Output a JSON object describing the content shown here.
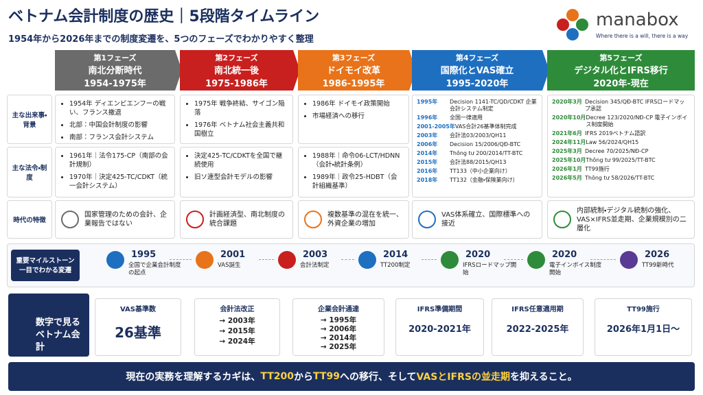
{
  "header": {
    "title": "ベトナム会計制度の歴史｜5段階タイムライン",
    "subtitle": "1954年から2026年までの制度変遷を、5つのフェーズでわかりやすく整理",
    "brand": "manabox",
    "tagline": "Where there is a will, there is a way"
  },
  "row_labels": [
    "主な出来事・背景",
    "主な法令・制度",
    "時代の特徴"
  ],
  "phases": [
    {
      "label": "第1フェーズ",
      "name": "南北分断時代",
      "years": "1954-1975年",
      "color": "#6b6b6b",
      "events": [
        "1954年 ディエンビエンフーの戦い、フランス撤退",
        "北部：中国会計制度の影響",
        "南部：フランス会計システム"
      ],
      "laws": [
        "1961年｜法令175-CP（南部の会計規制）",
        "1970年｜決定425-TC/CDKT（統一会計システム）"
      ],
      "feature": "国家管理のための会計、企業報告ではない"
    },
    {
      "label": "第2フェーズ",
      "name": "南北統一後",
      "years": "1975-1986年",
      "color": "#c8201e",
      "events": [
        "1975年 戦争終結、サイゴン陥落",
        "1976年 ベトナム社会主義共和国樹立"
      ],
      "laws": [
        "決定425-TC/CDKTを全国で継続使用",
        "旧ソ連型会計モデルの影響"
      ],
      "feature": "計画経済型、南北制度の統合課題"
    },
    {
      "label": "第3フェーズ",
      "name": "ドイモイ改革",
      "years": "1986-1995年",
      "color": "#e8731a",
      "events": [
        "1986年 ドイモイ政策開始",
        "市場経済への移行"
      ],
      "laws": [
        "1988年｜命令06-LCT/HDNN（会計・統計条例）",
        "1989年｜政令25-HDBT（会計組織基準）"
      ],
      "feature": "複数基準の混在を統一、外資企業の増加"
    },
    {
      "label": "第4フェーズ",
      "name": "国際化とVAS確立",
      "years": "1995-2020年",
      "color": "#1f6fc0",
      "timeline": [
        [
          "1995年",
          "Decision 1141-TC/QD/CDKT 企業会計システム制定"
        ],
        [
          "1996年",
          "全国一律適用"
        ],
        [
          "2001-2005年",
          "VAS合計26基準体制完成"
        ],
        [
          "2003年",
          "会計法03/2003/QH11"
        ],
        [
          "2006年",
          "Decision 15/2006/QĐ-BTC"
        ],
        [
          "2014年",
          "Thông tư 200/2014/TT-BTC"
        ],
        [
          "2015年",
          "会計法88/2015/QH13"
        ],
        [
          "2016年",
          "TT133（中小企業向け）"
        ],
        [
          "2018年",
          "TT132（金融・保険業向け）"
        ]
      ],
      "feature": "VAS体系確立、国際標準への接近"
    },
    {
      "label": "第5フェーズ",
      "name": "デジタル化とIFRS移行",
      "years": "2020年-現在",
      "color": "#2e8b3a",
      "timeline": [
        [
          "2020年3月",
          "Decision 345/QĐ-BTC IFRSロードマップ承認"
        ],
        [
          "2020年10月",
          "Decree 123/2020/NĐ-CP 電子インボイス制度開始"
        ],
        [
          "2021年6月",
          "IFRS 2019ベトナム語訳"
        ],
        [
          "2024年11月",
          "Law 56/2024/QH15"
        ],
        [
          "2025年3月",
          "Decree 70/2025/NĐ-CP"
        ],
        [
          "2025年10月",
          "Thông tư 99/2025/TT-BTC"
        ],
        [
          "2026年1月",
          "TT99施行"
        ],
        [
          "2026年5月",
          "Thông tư 58/2026/TT-BTC"
        ]
      ],
      "feature": "内部統制・デジタル統制の強化、VAS×IFRS並走期、企業規模別の二層化"
    }
  ],
  "milestones": {
    "label": "重要マイルストーン一目でわかる変遷",
    "items": [
      {
        "year": "1995",
        "text": "全国で企業会計制度の起点",
        "color": "#1f6fc0"
      },
      {
        "year": "2001",
        "text": "VAS誕生",
        "color": "#e8731a"
      },
      {
        "year": "2003",
        "text": "会計法制定",
        "color": "#c8201e"
      },
      {
        "year": "2014",
        "text": "TT200制定",
        "color": "#1f6fc0"
      },
      {
        "year": "2020",
        "text": "IFRSロードマップ開始",
        "color": "#2e8b3a"
      },
      {
        "year": "2020",
        "text": "電子インボイス制度開始",
        "color": "#2e8b3a"
      },
      {
        "year": "2026",
        "text": "TT99新時代",
        "color": "#5b3a96"
      }
    ]
  },
  "numbers": {
    "label": "数字で見るベトナム会計",
    "cards": [
      {
        "title": "VAS基準数",
        "main": "26基準"
      },
      {
        "title": "会計法改正",
        "list": [
          "2003年",
          "2015年",
          "2024年"
        ]
      },
      {
        "title": "企業会計通達",
        "list": [
          "1995年",
          "2006年",
          "2014年",
          "2025年"
        ]
      },
      {
        "title": "IFRS準備期間",
        "main": "2020-2021年"
      },
      {
        "title": "IFRS任意適用期",
        "main": "2022-2025年"
      },
      {
        "title": "TT99施行",
        "main": "2026年1月1日〜"
      }
    ]
  },
  "footer": {
    "segments": [
      {
        "text": "現在の実務を理解するカギは、",
        "em": false
      },
      {
        "text": "TT200",
        "em": true
      },
      {
        "text": " から ",
        "em": false
      },
      {
        "text": "TT99",
        "em": true
      },
      {
        "text": " への移行、そして",
        "em": false
      },
      {
        "text": "VASとIFRSの並走期",
        "em": true
      },
      {
        "text": "を抑えること。",
        "em": false
      }
    ]
  }
}
